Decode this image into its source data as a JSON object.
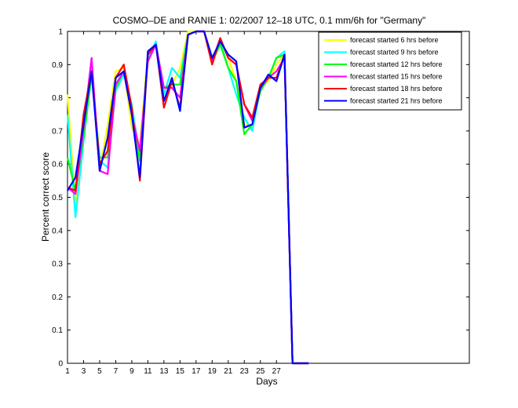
{
  "chart_data": {
    "type": "line",
    "title": "COSMO–DE and RANIE 1: 02/2007 12–18 UTC, 0.1 mm/6h for \"Germany\"",
    "xlabel": "Days",
    "ylabel": "Percent correct score",
    "xlim": [
      1,
      51
    ],
    "ylim": [
      0,
      1
    ],
    "xticks": [
      1,
      3,
      5,
      7,
      9,
      11,
      13,
      15,
      17,
      19,
      21,
      23,
      25,
      27
    ],
    "yticks": [
      0,
      0.1,
      0.2,
      0.3,
      0.4,
      0.5,
      0.6,
      0.7,
      0.8,
      0.9,
      1
    ],
    "ytick_labels": [
      "0",
      "0.1",
      "0.2",
      "0.3",
      "0.4",
      "0.5",
      "0.6",
      "0.7",
      "0.8",
      "0.9",
      "1"
    ],
    "legend_position": "top-right",
    "x": [
      1,
      2,
      3,
      4,
      5,
      6,
      7,
      8,
      9,
      10,
      11,
      12,
      13,
      14,
      15,
      16,
      17,
      18,
      19,
      20,
      21,
      22,
      23,
      24,
      25,
      26,
      27,
      28,
      29,
      30,
      31
    ],
    "series": [
      {
        "name": "forecast started 6 hrs before",
        "color": "#ffff00",
        "values": [
          0.81,
          0.47,
          0.73,
          0.9,
          0.58,
          0.72,
          0.88,
          0.89,
          0.71,
          0.66,
          0.93,
          0.96,
          0.82,
          0.84,
          0.89,
          1.0,
          1.0,
          1.0,
          0.9,
          0.97,
          0.92,
          0.85,
          0.72,
          0.71,
          0.83,
          0.85,
          0.9,
          0.93,
          0,
          0,
          0
        ]
      },
      {
        "name": "forecast started 9 hrs before",
        "color": "#00ffff",
        "values": [
          0.75,
          0.44,
          0.67,
          0.87,
          0.61,
          0.59,
          0.82,
          0.87,
          0.78,
          0.62,
          0.92,
          0.97,
          0.81,
          0.89,
          0.86,
          0.99,
          1.0,
          1.0,
          0.91,
          0.97,
          0.89,
          0.81,
          0.74,
          0.7,
          0.83,
          0.86,
          0.92,
          0.94,
          0,
          0,
          0
        ]
      },
      {
        "name": "forecast started 12 hrs before",
        "color": "#00ff00",
        "values": [
          0.62,
          0.52,
          0.68,
          0.87,
          0.62,
          0.62,
          0.83,
          0.88,
          0.76,
          0.61,
          0.93,
          0.96,
          0.83,
          0.84,
          0.84,
          0.99,
          1.0,
          1.0,
          0.91,
          0.96,
          0.89,
          0.85,
          0.69,
          0.72,
          0.82,
          0.86,
          0.92,
          0.93,
          0,
          0,
          0
        ]
      },
      {
        "name": "forecast started 15 hrs before",
        "color": "#ff00ff",
        "values": [
          0.53,
          0.51,
          0.71,
          0.92,
          0.58,
          0.57,
          0.84,
          0.88,
          0.75,
          0.64,
          0.91,
          0.96,
          0.83,
          0.83,
          0.8,
          0.99,
          1.0,
          1.0,
          0.91,
          0.98,
          0.92,
          0.9,
          0.78,
          0.73,
          0.83,
          0.86,
          0.88,
          0.92,
          0,
          0,
          0
        ]
      },
      {
        "name": "forecast started 18 hrs before",
        "color": "#ff0000",
        "values": [
          0.53,
          0.52,
          0.75,
          0.88,
          0.6,
          0.64,
          0.86,
          0.9,
          0.77,
          0.55,
          0.93,
          0.96,
          0.77,
          0.85,
          0.77,
          0.99,
          1.0,
          1.0,
          0.9,
          0.98,
          0.92,
          0.9,
          0.78,
          0.74,
          0.84,
          0.86,
          0.86,
          0.93,
          0,
          0,
          0
        ]
      },
      {
        "name": "forecast started 21 hrs before",
        "color": "#0000ff",
        "values": [
          0.52,
          0.56,
          0.72,
          0.88,
          0.58,
          0.68,
          0.86,
          0.88,
          0.75,
          0.56,
          0.94,
          0.96,
          0.79,
          0.86,
          0.76,
          0.99,
          1.0,
          1.0,
          0.92,
          0.97,
          0.93,
          0.91,
          0.71,
          0.72,
          0.83,
          0.87,
          0.85,
          0.93,
          0,
          0,
          0
        ]
      }
    ]
  }
}
